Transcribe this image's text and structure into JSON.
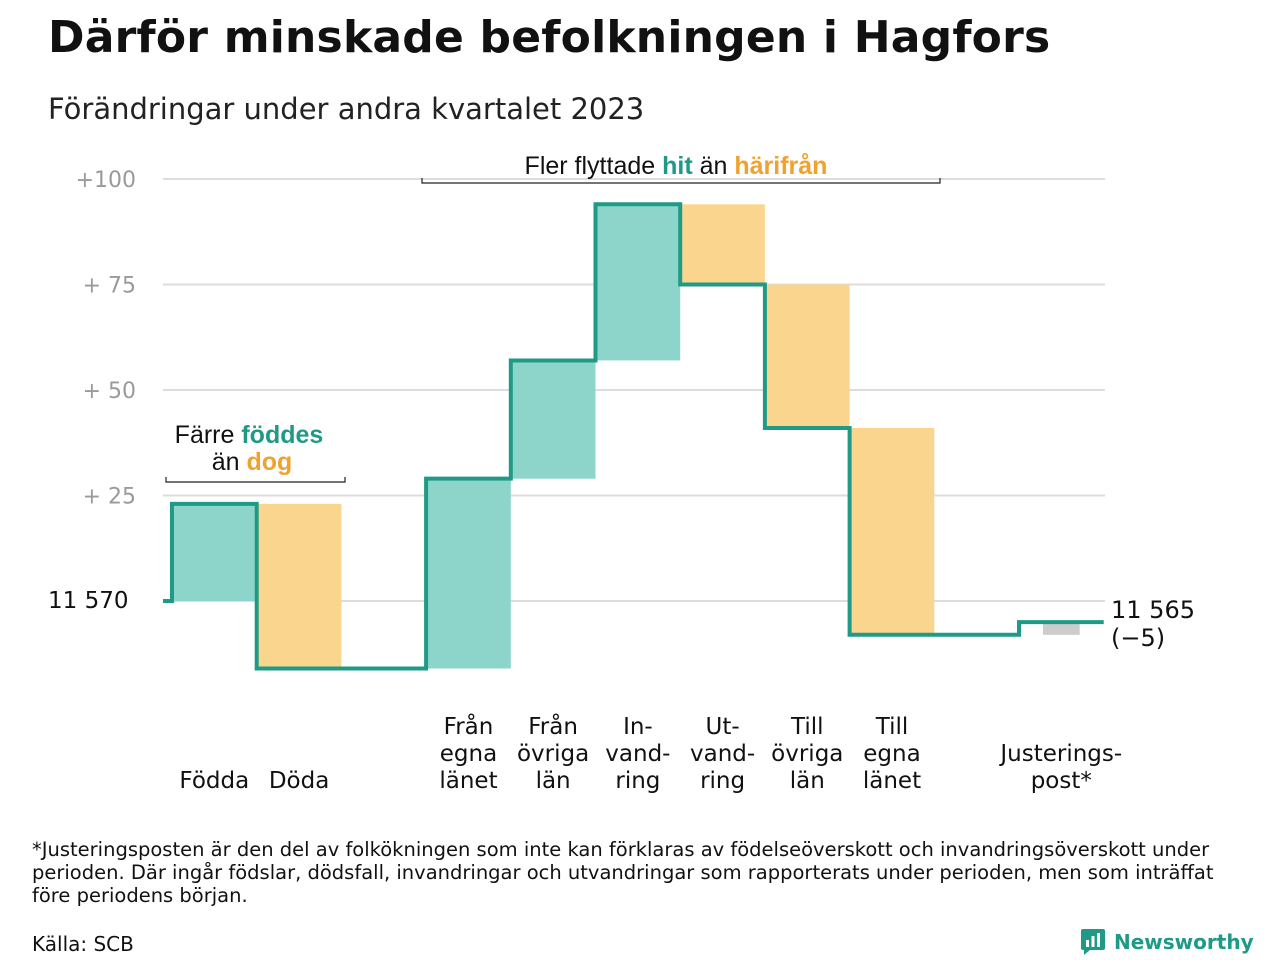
{
  "title": "Därför minskade befolkningen i Hagfors",
  "subtitle": "Förändringar under andra kvartalet 2023",
  "chart_data": {
    "type": "waterfall",
    "baseline_label": "11  570",
    "end_label_value": "11 565",
    "end_label_change": "(−5)",
    "y_ticks": [
      {
        "value": 100,
        "label": "+100"
      },
      {
        "value": 75,
        "label": "+  75"
      },
      {
        "value": 50,
        "label": "+  50"
      },
      {
        "value": 25,
        "label": "+  25"
      }
    ],
    "ylim": [
      -20,
      100
    ],
    "categories": [
      {
        "lines": [
          "Födda"
        ],
        "delta": 23,
        "kind": "in"
      },
      {
        "lines": [
          "Döda"
        ],
        "delta": -39,
        "kind": "out"
      },
      {
        "lines": [],
        "delta": 0,
        "kind": "gap"
      },
      {
        "lines": [
          "Från",
          "egna",
          "länet"
        ],
        "delta": 45,
        "kind": "in"
      },
      {
        "lines": [
          "Från",
          "övriga",
          "län"
        ],
        "delta": 28,
        "kind": "in"
      },
      {
        "lines": [
          "In-",
          "vand-",
          "ring"
        ],
        "delta": 37,
        "kind": "in"
      },
      {
        "lines": [
          "Ut-",
          "vand-",
          "ring"
        ],
        "delta": -19,
        "kind": "out"
      },
      {
        "lines": [
          "Till",
          "övriga",
          "län"
        ],
        "delta": -34,
        "kind": "out"
      },
      {
        "lines": [
          "Till",
          "egna",
          "länet"
        ],
        "delta": -49,
        "kind": "out"
      },
      {
        "lines": [],
        "delta": 0,
        "kind": "gap"
      },
      {
        "lines": [
          "Justerings-",
          "post*"
        ],
        "delta": 3,
        "kind": "adjust"
      }
    ],
    "annotations": [
      {
        "id": "births",
        "line1_prefix": "Färre ",
        "line1_em": "föddes",
        "line2_prefix": "än ",
        "line2_em": "dog"
      },
      {
        "id": "migration",
        "prefix": "Fler flyttade ",
        "em1": "hit",
        "middle": " än ",
        "em2": "härifrån"
      }
    ],
    "colors": {
      "in_fill": "#8dd5cb",
      "out_fill": "#fad58e",
      "adjust_fill": "#cccccc",
      "line": "#1e9a86",
      "teal_text": "#1e9a86",
      "orange_text": "#f0a22e",
      "grid": "#dddddd",
      "tick_text": "#9a9a9a"
    },
    "grid": true
  },
  "footnote": "*Justeringsposten är den del av folkökningen som inte kan förklaras av födelseöverskott och invandringsöverskott under perioden. Där ingår födslar, dödsfall, invandringar och utvandringar som rapporterats under perioden, men som inträffat före periodens början.",
  "source": "Källa: SCB",
  "brand": {
    "name": "Newsworthy",
    "icon": "bar-chart-speech-bubble-icon"
  }
}
